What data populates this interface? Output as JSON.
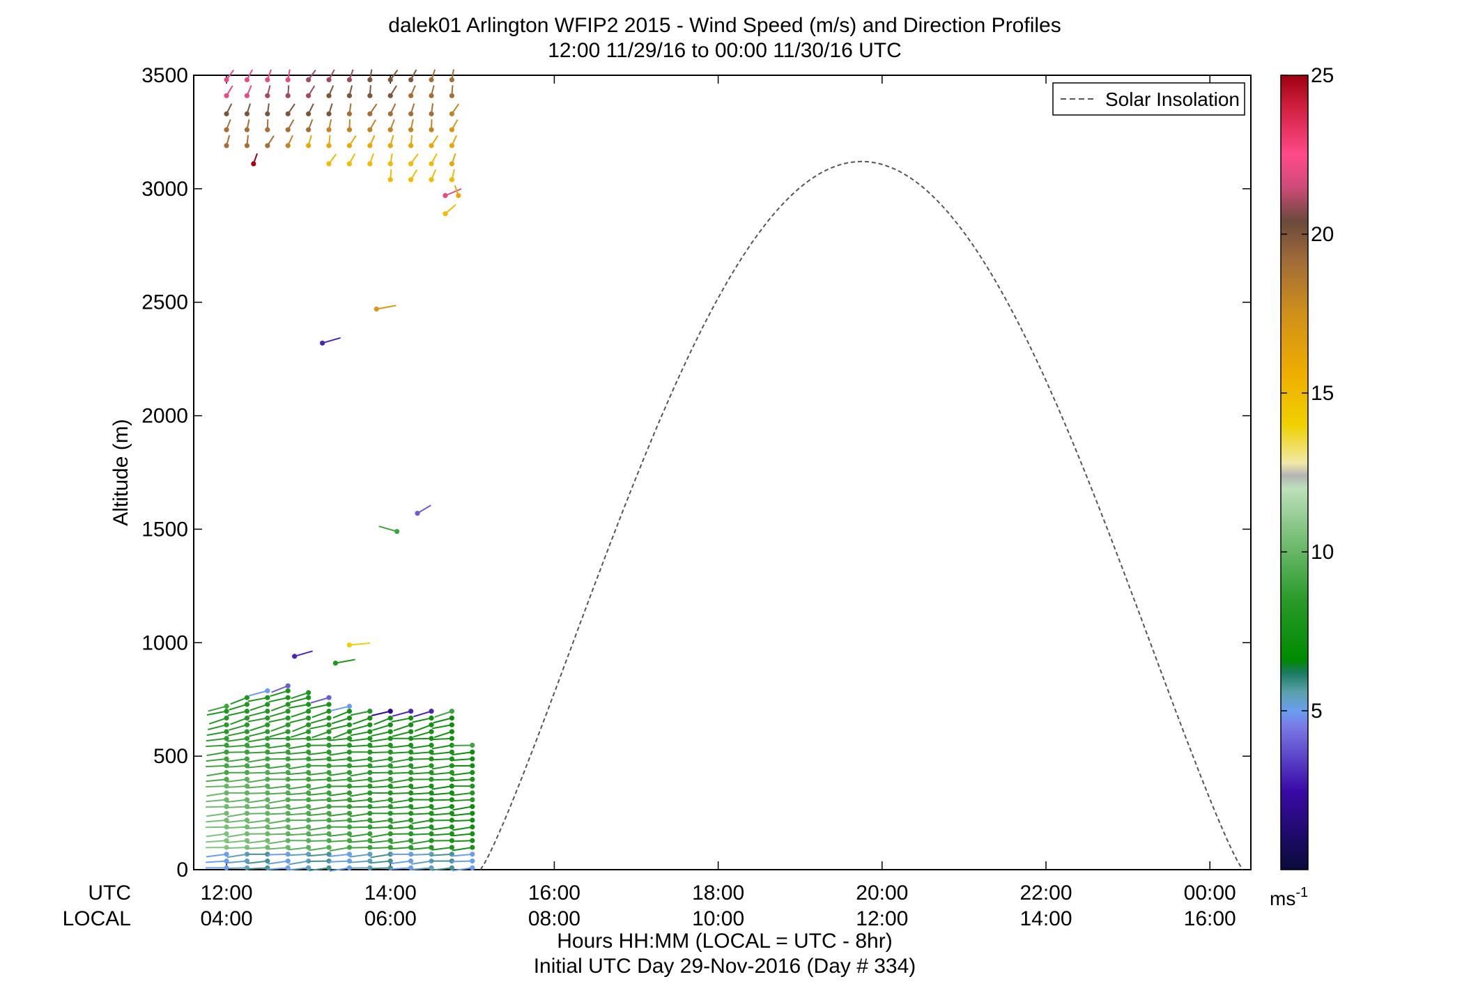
{
  "chart_data": {
    "type": "wind-barb-profile",
    "title": "dalek01 Arlington WFIP2 2015 - Wind Speed (m/s) and Direction Profiles",
    "subtitle": "12:00 11/29/16 to 00:00 11/30/16  UTC",
    "ylabel": "Altitude (m)",
    "xlabel": "Hours HH:MM  (LOCAL = UTC - 8hr)",
    "xlabel2": "Initial UTC Day 29-Nov-2016 (Day # 334)",
    "row_label_utc": "UTC",
    "row_label_local": "LOCAL",
    "ylim": [
      0,
      3500
    ],
    "xlim_hours_utc": [
      11.6,
      24.5
    ],
    "y_ticks": [
      0,
      500,
      1000,
      1500,
      2000,
      2500,
      3000,
      3500
    ],
    "y_tick_labels": [
      "0",
      "500",
      "1000",
      "1500",
      "2000",
      "2500",
      "3000",
      "3500"
    ],
    "x_ticks_hours": [
      12,
      14,
      16,
      18,
      20,
      22,
      24
    ],
    "x_tick_labels_utc": [
      "12:00",
      "14:00",
      "16:00",
      "18:00",
      "20:00",
      "22:00",
      "00:00"
    ],
    "x_tick_labels_local": [
      "04:00",
      "06:00",
      "08:00",
      "10:00",
      "12:00",
      "14:00",
      "16:00"
    ],
    "legend": {
      "entry": "Solar Insolation",
      "position": "top-right",
      "style": "dashed gray"
    },
    "solar_insolation": {
      "start_hour": 15.1,
      "peak_hour": 19.75,
      "end_hour": 24.4,
      "peak_altitude_display": 3120
    },
    "colorbar": {
      "ticks": [
        5,
        10,
        15,
        20,
        25
      ],
      "tick_labels": [
        "5",
        "10",
        "15",
        "20",
        "25"
      ],
      "unit_label": "ms",
      "unit_exp": "-1",
      "range": [
        0,
        25
      ],
      "stops": [
        {
          "v": 0,
          "c": "#0a0a3a"
        },
        {
          "v": 2.5,
          "c": "#3a0aa8"
        },
        {
          "v": 4.5,
          "c": "#7a7ae6"
        },
        {
          "v": 5.0,
          "c": "#6a9ef0"
        },
        {
          "v": 5.6,
          "c": "#5aa0aa"
        },
        {
          "v": 6.2,
          "c": "#1a7a60"
        },
        {
          "v": 6.6,
          "c": "#008a00"
        },
        {
          "v": 8.5,
          "c": "#2a9a2a"
        },
        {
          "v": 10.5,
          "c": "#7ac07a"
        },
        {
          "v": 12.0,
          "c": "#bde0bd"
        },
        {
          "v": 12.4,
          "c": "#b4b4b4"
        },
        {
          "v": 12.8,
          "c": "#f2e8a8"
        },
        {
          "v": 14.0,
          "c": "#f0d000"
        },
        {
          "v": 15.5,
          "c": "#f0b000"
        },
        {
          "v": 17.5,
          "c": "#d0901a"
        },
        {
          "v": 19.2,
          "c": "#a06a3a"
        },
        {
          "v": 20.4,
          "c": "#6a4a3a"
        },
        {
          "v": 21.5,
          "c": "#d04a7a"
        },
        {
          "v": 22.5,
          "c": "#ff4a8a"
        },
        {
          "v": 24.0,
          "c": "#d02040"
        },
        {
          "v": 25,
          "c": "#a00010"
        }
      ]
    },
    "profiles": {
      "times_hours": [
        12.0,
        12.25,
        12.5,
        12.75,
        13.0,
        13.25,
        13.5,
        13.75,
        14.0,
        14.25,
        14.5,
        14.75,
        15.0
      ],
      "low_level": {
        "min_altitude": 0,
        "spacing_m": 30,
        "top_altitudes_m": [
          720,
          760,
          790,
          810,
          780,
          760,
          720,
          700,
          700,
          700,
          700,
          700,
          560
        ],
        "top_speed_ms": [
          9,
          8,
          5,
          4,
          8,
          4,
          5,
          8,
          2,
          3,
          3,
          9,
          9
        ],
        "surface_speed_ms": 5,
        "mid_speed_ms": 11,
        "upper_speed_ms": 8,
        "direction_deg": 100
      },
      "isolated_barbs": [
        {
          "t": 12.33,
          "alt": 3110,
          "speed": 25,
          "dir": 350
        },
        {
          "t": 12.83,
          "alt": 940,
          "speed": 3,
          "dir": 300
        },
        {
          "t": 13.17,
          "alt": 2320,
          "speed": 3,
          "dir": 300
        },
        {
          "t": 13.33,
          "alt": 910,
          "speed": 8,
          "dir": 290
        },
        {
          "t": 13.5,
          "alt": 990,
          "speed": 14,
          "dir": 280
        },
        {
          "t": 13.83,
          "alt": 2470,
          "speed": 17,
          "dir": 290
        },
        {
          "t": 14.08,
          "alt": 1490,
          "speed": 9,
          "dir": 60
        },
        {
          "t": 14.33,
          "alt": 1570,
          "speed": 4,
          "dir": 320
        },
        {
          "t": 14.67,
          "alt": 2890,
          "speed": 15,
          "dir": 330
        },
        {
          "t": 14.67,
          "alt": 2970,
          "speed": 22,
          "dir": 310
        },
        {
          "t": 14.83,
          "alt": 2970,
          "speed": 16,
          "dir": 10
        }
      ],
      "upper_level": {
        "altitudes_m": [
          3480,
          3410,
          3330,
          3260,
          3190,
          3110,
          3040
        ],
        "speed_pattern": [
          [
            22,
            22,
            22,
            22,
            21,
            21,
            21,
            20,
            20,
            20,
            19,
            19,
            19
          ],
          [
            22,
            22,
            21,
            21,
            21,
            20,
            20,
            20,
            20,
            19,
            19,
            19,
            19
          ],
          [
            20,
            20,
            20,
            20,
            20,
            20,
            19,
            19,
            19,
            19,
            19,
            18,
            19
          ],
          [
            19,
            19,
            19,
            19,
            19,
            18,
            18,
            18,
            18,
            18,
            18,
            17,
            17
          ],
          [
            19,
            19,
            19,
            18,
            16,
            16,
            16,
            16,
            16,
            16,
            16,
            16,
            17
          ],
          [
            0,
            0,
            0,
            0,
            0,
            15,
            15,
            15,
            15,
            15,
            15,
            16,
            16
          ],
          [
            0,
            0,
            0,
            0,
            0,
            0,
            0,
            0,
            15,
            15,
            15,
            15,
            16
          ]
        ]
      }
    }
  }
}
